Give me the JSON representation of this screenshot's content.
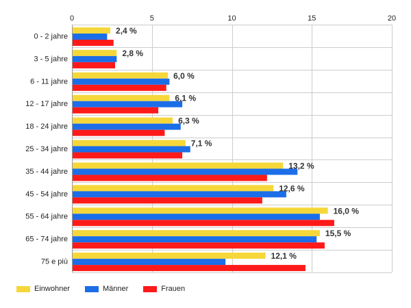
{
  "chart_data": {
    "type": "bar",
    "orientation": "horizontal",
    "categories": [
      "0 - 2 jahre",
      "3 - 5 jahre",
      "6 - 11 jahre",
      "12 - 17 jahre",
      "18 - 24 jahre",
      "25 - 34 jahre",
      "35 - 44 jahre",
      "45 - 54 jahre",
      "55 - 64 jahre",
      "65 - 74 jahre",
      "75 e più"
    ],
    "series": [
      {
        "name": "Einwohner",
        "color": "#f6d73a",
        "values": [
          2.4,
          2.8,
          6.0,
          6.1,
          6.3,
          7.1,
          13.2,
          12.6,
          16.0,
          15.5,
          12.1
        ]
      },
      {
        "name": "Männer",
        "color": "#1c6ee8",
        "values": [
          2.2,
          2.8,
          6.1,
          6.9,
          6.8,
          7.4,
          14.1,
          13.4,
          15.5,
          15.3,
          9.6
        ]
      },
      {
        "name": "Frauen",
        "color": "#ff1a1a",
        "values": [
          2.6,
          2.7,
          5.9,
          5.4,
          5.8,
          6.9,
          12.2,
          11.9,
          16.4,
          15.8,
          14.6
        ]
      }
    ],
    "data_labels": [
      "2,4 %",
      "2,8 %",
      "6,0 %",
      "6,1 %",
      "6,3 %",
      "7,1 %",
      "13,2 %",
      "12,6 %",
      "16,0 %",
      "15,5 %",
      "12,1 %"
    ],
    "x_ticks": [
      "0",
      "5",
      "10",
      "15",
      "20"
    ],
    "xlim": [
      0,
      20
    ],
    "axis_position": "top",
    "grid": true,
    "legend_position": "bottom-left"
  }
}
